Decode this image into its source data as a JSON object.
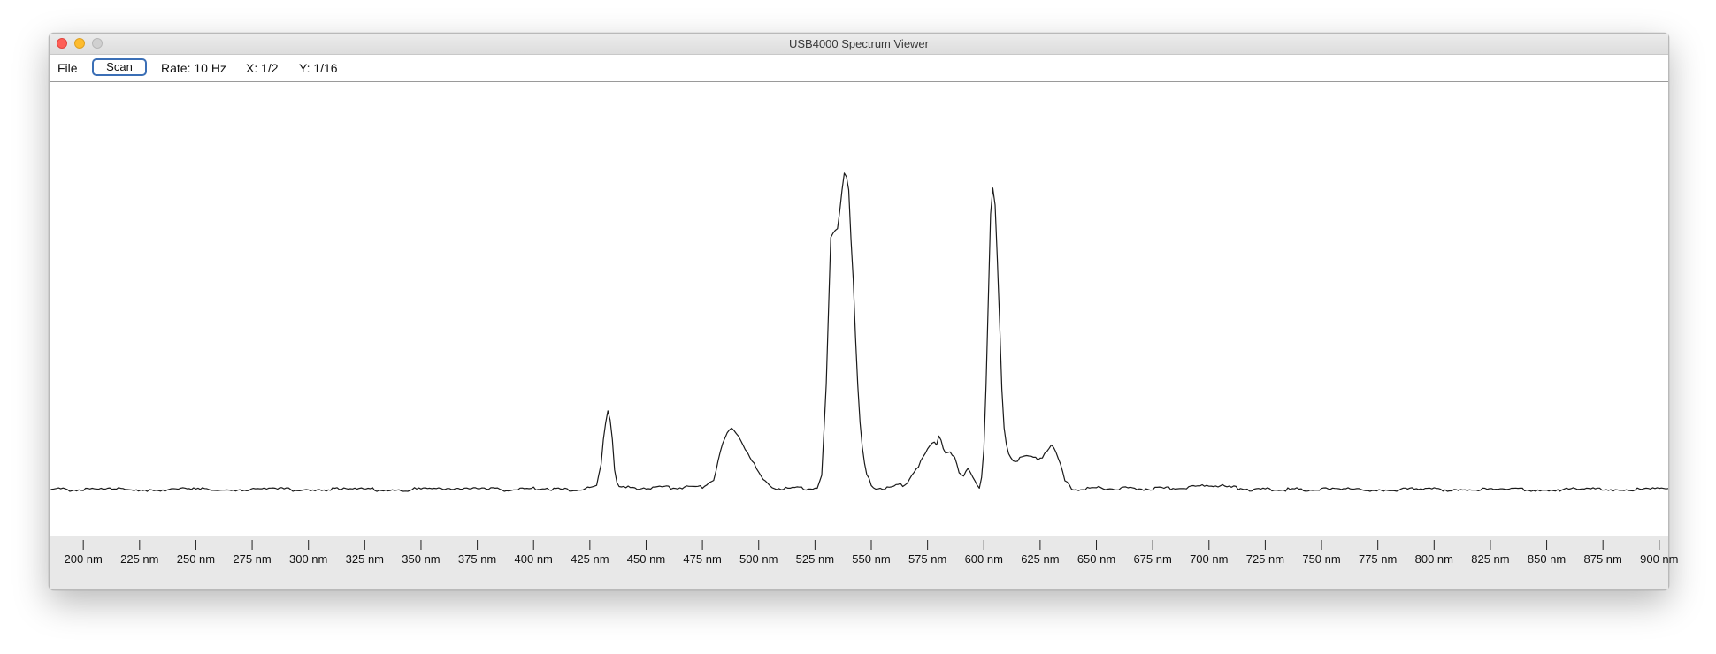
{
  "window": {
    "title": "USB4000 Spectrum Viewer"
  },
  "toolbar": {
    "file_label": "File",
    "scan_label": "Scan",
    "rate_text": "Rate: 10 Hz",
    "x_scale_text": "X: 1/2",
    "y_scale_text": "Y: 1/16"
  },
  "chart_data": {
    "type": "line",
    "title": "",
    "xlabel": "",
    "ylabel": "",
    "x_unit": "nm",
    "xlim": [
      185,
      904
    ],
    "ylim": [
      0,
      1
    ],
    "grid": false,
    "ticks": [
      200,
      225,
      250,
      275,
      300,
      325,
      350,
      375,
      400,
      425,
      450,
      475,
      500,
      525,
      550,
      575,
      600,
      625,
      650,
      675,
      700,
      725,
      750,
      775,
      800,
      825,
      850,
      875,
      900
    ],
    "tick_labels": [
      "200 nm",
      "225 nm",
      "250 nm",
      "275 nm",
      "300 nm",
      "325 nm",
      "350 nm",
      "375 nm",
      "400 nm",
      "425 nm",
      "450 nm",
      "475 nm",
      "500 nm",
      "525 nm",
      "550 nm",
      "575 nm",
      "600 nm",
      "625 nm",
      "650 nm",
      "675 nm",
      "700 nm",
      "725 nm",
      "750 nm",
      "775 nm",
      "800 nm",
      "825 nm",
      "850 nm",
      "875 nm",
      "900 nm"
    ],
    "series": [
      {
        "color": "#1a1a1a",
        "x": [
          185,
          200,
          250,
          300,
          350,
          380,
          395,
          405,
          410,
          420,
          425,
          428,
          430,
          431,
          432,
          433,
          434,
          435,
          436,
          437,
          438,
          440,
          445,
          460,
          475,
          480,
          482,
          484,
          486,
          488,
          490,
          492,
          494,
          496,
          498,
          500,
          502,
          504,
          508,
          512,
          520,
          526,
          528,
          530,
          532,
          534,
          535,
          536,
          537,
          538,
          539,
          540,
          541,
          542,
          543,
          544,
          545,
          546,
          547,
          548,
          550,
          552,
          554,
          556,
          558,
          560,
          565,
          570,
          573,
          575,
          577,
          579,
          580,
          581,
          582,
          583,
          584,
          585,
          586,
          587,
          588,
          589,
          590,
          591,
          592,
          593,
          594,
          595,
          596,
          597,
          598,
          599,
          600,
          601,
          602,
          603,
          604,
          605,
          606,
          607,
          608,
          609,
          610,
          611,
          612,
          613,
          614,
          615,
          616,
          618,
          620,
          622,
          624,
          626,
          628,
          630,
          632,
          634,
          636,
          638,
          640,
          645,
          650,
          655,
          660,
          670,
          690,
          700,
          710,
          715,
          716,
          718,
          725,
          750,
          800,
          850,
          904
        ],
        "y": [
          0.0,
          0.0,
          0.0,
          0.0,
          0.0,
          0.0,
          0.0,
          0.004,
          0.0,
          0.0,
          0.002,
          0.01,
          0.06,
          0.12,
          0.16,
          0.19,
          0.17,
          0.12,
          0.05,
          0.02,
          0.006,
          0.004,
          0.004,
          0.005,
          0.007,
          0.025,
          0.07,
          0.11,
          0.135,
          0.145,
          0.138,
          0.12,
          0.1,
          0.082,
          0.06,
          0.04,
          0.022,
          0.012,
          0.004,
          0.003,
          0.002,
          0.005,
          0.03,
          0.25,
          0.6,
          0.62,
          0.63,
          0.67,
          0.72,
          0.76,
          0.75,
          0.72,
          0.6,
          0.5,
          0.36,
          0.25,
          0.16,
          0.1,
          0.06,
          0.035,
          0.012,
          0.005,
          0.003,
          0.003,
          0.004,
          0.008,
          0.012,
          0.05,
          0.075,
          0.095,
          0.11,
          0.11,
          0.13,
          0.12,
          0.1,
          0.088,
          0.09,
          0.092,
          0.086,
          0.075,
          0.06,
          0.04,
          0.035,
          0.03,
          0.04,
          0.05,
          0.045,
          0.035,
          0.025,
          0.015,
          0.005,
          0.03,
          0.1,
          0.25,
          0.45,
          0.66,
          0.72,
          0.68,
          0.55,
          0.4,
          0.24,
          0.15,
          0.11,
          0.09,
          0.08,
          0.072,
          0.068,
          0.07,
          0.075,
          0.078,
          0.076,
          0.075,
          0.072,
          0.08,
          0.095,
          0.11,
          0.09,
          0.06,
          0.02,
          0.008,
          0.0,
          0.002,
          0.003,
          0.004,
          0.003,
          0.002,
          0.004,
          0.012,
          0.005,
          0.003,
          0.002,
          0.0,
          0.0,
          0.0,
          0.0,
          0.0,
          0.0
        ]
      }
    ]
  }
}
